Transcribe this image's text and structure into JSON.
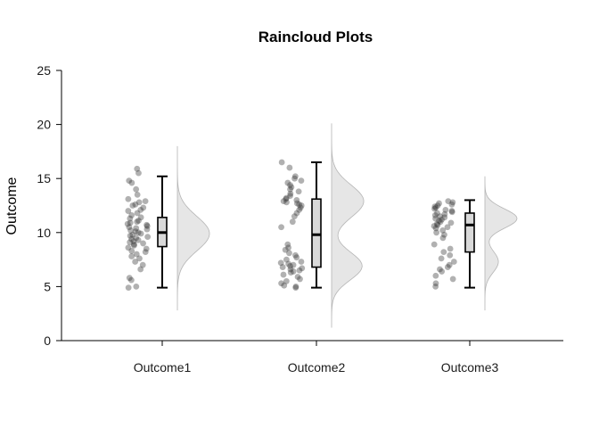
{
  "chart_data": {
    "type": "raincloud",
    "title": "Raincloud Plots",
    "xlabel": "",
    "ylabel": "Outcome",
    "ylim": [
      0,
      25
    ],
    "yticks": [
      0,
      5,
      10,
      15,
      20,
      25
    ],
    "grid": false,
    "legend": "none",
    "colors": {
      "points": "#333333",
      "box_fill": "#d9d9d9",
      "cloud_fill": "#e6e6e6",
      "cloud_edge": "#b5b5b5",
      "axis": "#000000"
    },
    "categories": [
      "Outcome1",
      "Outcome2",
      "Outcome3"
    ],
    "groups": [
      {
        "name": "Outcome1",
        "box": {
          "min": 4.9,
          "q1": 8.7,
          "median": 10.0,
          "q3": 11.4,
          "max": 15.2
        },
        "density_range": [
          2.8,
          18.0
        ],
        "density_peaks": [
          {
            "mu": 9.9,
            "sigma": 1.6,
            "w": 1.0
          }
        ],
        "points": [
          15.9,
          15.5,
          14.8,
          14.6,
          14.0,
          13.5,
          13.1,
          12.9,
          12.8,
          12.6,
          12.5,
          12.3,
          12.1,
          12.0,
          11.8,
          11.6,
          11.4,
          11.3,
          11.1,
          11.0,
          10.9,
          10.8,
          10.7,
          10.6,
          10.5,
          10.4,
          10.3,
          10.2,
          10.1,
          10.0,
          9.9,
          9.8,
          9.7,
          9.6,
          9.5,
          9.4,
          9.3,
          9.2,
          9.1,
          9.0,
          8.9,
          8.8,
          8.6,
          8.5,
          8.3,
          8.2,
          8.0,
          7.8,
          7.6,
          7.3,
          7.0,
          6.6,
          5.8,
          5.6,
          5.0,
          4.9
        ]
      },
      {
        "name": "Outcome2",
        "box": {
          "min": 4.9,
          "q1": 6.8,
          "median": 9.8,
          "q3": 13.1,
          "max": 16.5
        },
        "density_range": [
          1.2,
          20.1
        ],
        "density_peaks": [
          {
            "mu": 12.9,
            "sigma": 1.5,
            "w": 1.0
          },
          {
            "mu": 6.9,
            "sigma": 1.3,
            "w": 0.95
          }
        ],
        "points": [
          16.5,
          16.0,
          15.2,
          15.0,
          14.8,
          14.6,
          14.4,
          14.2,
          14.0,
          13.8,
          13.6,
          13.4,
          13.2,
          13.1,
          13.0,
          12.9,
          12.8,
          12.7,
          12.6,
          12.5,
          12.3,
          12.1,
          11.8,
          11.5,
          11.0,
          10.5,
          8.9,
          8.6,
          8.4,
          8.1,
          7.9,
          7.7,
          7.5,
          7.3,
          7.2,
          7.1,
          7.0,
          6.9,
          6.8,
          6.7,
          6.6,
          6.5,
          6.4,
          6.3,
          6.1,
          5.9,
          5.7,
          5.5,
          5.3,
          5.1,
          5.0,
          4.9
        ]
      },
      {
        "name": "Outcome3",
        "box": {
          "min": 4.9,
          "q1": 8.2,
          "median": 10.7,
          "q3": 11.8,
          "max": 13.0
        },
        "density_range": [
          2.8,
          15.2
        ],
        "density_peaks": [
          {
            "mu": 11.3,
            "sigma": 0.9,
            "w": 1.0
          },
          {
            "mu": 7.3,
            "sigma": 1.0,
            "w": 0.42
          }
        ],
        "points": [
          12.9,
          12.8,
          12.7,
          12.6,
          12.5,
          12.4,
          12.3,
          12.2,
          12.1,
          12.0,
          11.9,
          11.8,
          11.7,
          11.6,
          11.5,
          11.4,
          11.3,
          11.2,
          11.1,
          11.0,
          10.9,
          10.8,
          10.7,
          10.6,
          10.5,
          10.4,
          10.2,
          10.0,
          9.8,
          9.5,
          8.9,
          8.5,
          8.2,
          7.9,
          7.6,
          7.3,
          7.0,
          6.8,
          6.6,
          6.4,
          6.0,
          5.7,
          5.3,
          5.0
        ]
      }
    ]
  }
}
